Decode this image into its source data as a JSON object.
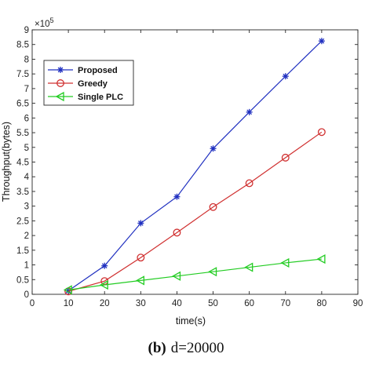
{
  "chart_data": {
    "type": "line",
    "x": [
      10,
      20,
      30,
      40,
      50,
      60,
      70,
      80
    ],
    "xlabel": "time(s)",
    "ylabel": "Throughput(bytes)",
    "y_exponent_label": "×10",
    "y_exponent_power": "5",
    "xlim": [
      0,
      90
    ],
    "ylim": [
      0,
      9
    ],
    "xticks": [
      "0",
      "10",
      "20",
      "30",
      "40",
      "50",
      "60",
      "70",
      "80",
      "90"
    ],
    "yticks": [
      "0",
      "0.5",
      "1",
      "1.5",
      "2",
      "2.5",
      "3",
      "3.5",
      "4",
      "4.5",
      "5",
      "5.5",
      "6",
      "6.5",
      "7",
      "7.5",
      "8",
      "8.5",
      "9"
    ],
    "grid": false,
    "legend_position": "top-left",
    "series": [
      {
        "name": "Proposed",
        "values": [
          0.12,
          0.97,
          2.42,
          3.32,
          4.96,
          6.2,
          7.42,
          8.62
        ],
        "color": "#2030c0",
        "marker": "asterisk"
      },
      {
        "name": "Greedy",
        "values": [
          0.1,
          0.45,
          1.25,
          2.1,
          2.97,
          3.78,
          4.65,
          5.52
        ],
        "color": "#d03030",
        "marker": "circle"
      },
      {
        "name": "Single PLC",
        "values": [
          0.15,
          0.32,
          0.47,
          0.62,
          0.77,
          0.92,
          1.07,
          1.2
        ],
        "color": "#22cc22",
        "marker": "triangle-left"
      }
    ]
  },
  "caption": {
    "label": "(b)",
    "text": "d=20000"
  }
}
